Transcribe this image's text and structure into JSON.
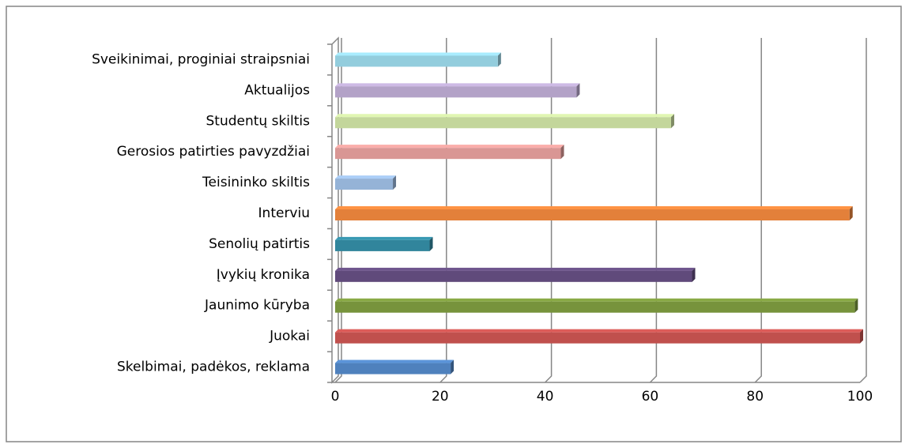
{
  "chart_data": {
    "type": "bar",
    "orientation": "horizontal",
    "categories": [
      "Sveikinimai, proginiai straipsniai",
      "Aktualijos",
      "Studentų skiltis",
      "Gerosios patirties pavyzdžiai",
      "Teisininko skiltis",
      "Interviu",
      "Senolių patirtis",
      "Įvykių kronika",
      "Jaunimo kūryba",
      "Juokai",
      "Skelbimai, padėkos, reklama"
    ],
    "values": [
      31,
      46,
      64,
      43,
      11,
      98,
      18,
      68,
      99,
      100,
      22
    ],
    "colors": [
      "#93cddd",
      "#b3a2c7",
      "#c3d69b",
      "#d99694",
      "#95b3d7",
      "#e3803a",
      "#31859c",
      "#604a7b",
      "#77933c",
      "#c0504d",
      "#4f81bd"
    ],
    "xlim": [
      0,
      100
    ],
    "xticks": [
      0,
      20,
      40,
      60,
      80,
      100
    ],
    "grid": true
  }
}
